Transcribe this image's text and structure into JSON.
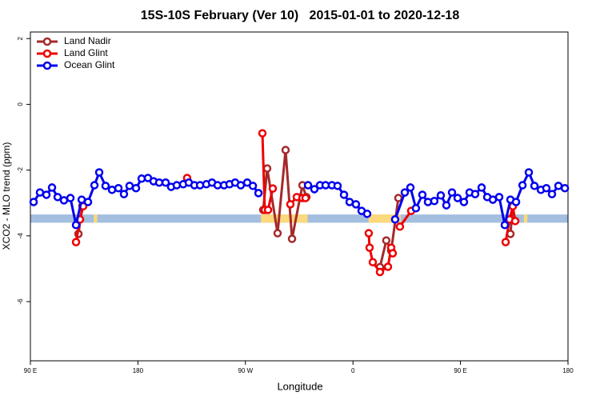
{
  "chart_data": {
    "type": "line",
    "title": "15S-10S February (Ver 10)   2015-01-01 to 2020-12-18",
    "x_label": "Longitude",
    "y_label": "XCO2 - MLO trend (ppm)",
    "xlim": [
      90,
      540
    ],
    "ylim": [
      -7.8,
      2.2
    ],
    "xticks": [
      {
        "value": 90,
        "label": "90 E"
      },
      180,
      {
        "value": 270,
        "label": "90 W"
      },
      {
        "value": 360,
        "label": "0"
      },
      {
        "value": 450,
        "label": "90 E"
      },
      {
        "value": 540,
        "label": "180"
      }
    ],
    "yticks": [
      2,
      0,
      -2,
      -4,
      -6
    ],
    "legend": "top-left",
    "band": {
      "ylim": [
        -3.35,
        -3.6
      ],
      "ocean_color": "#a3bedf",
      "land_color": "#fcd97a",
      "land": [
        [
          143,
          146
        ],
        [
          283,
          322
        ],
        [
          373,
          400
        ],
        [
          503,
          506
        ]
      ]
    },
    "series": [
      {
        "name": "Land Nadir",
        "color": "#a52a2a",
        "x": [
          130.2,
          133.5,
          null,
          284.9,
          288.2,
          296.9,
          303.6,
          309,
          317.7,
          321,
          null,
          382.6,
          387.9,
          392,
          398,
          null,
          491.8,
          493.8
        ],
        "values": [
          -3.94,
          -3.09,
          null,
          -3.21,
          -1.95,
          -3.92,
          -1.39,
          -4.09,
          -2.46,
          -2.82,
          null,
          -4.95,
          -4.14,
          -4.45,
          -2.85,
          null,
          -3.94,
          -3.09
        ]
      },
      {
        "name": "Land Glint",
        "color": "#ee0000",
        "x": [
          128.2,
          131.5,
          134.2,
          null,
          221.2,
          null,
          284.2,
          286.2,
          288.9,
          292.9,
          null,
          307.6,
          313,
          317.7,
          320.3,
          null,
          373.2,
          373.9,
          376.6,
          382.6,
          389.3,
          392,
          393.3,
          null,
          399.3,
          408.7,
          null,
          487.8,
          491.1,
          493.8,
          495.8
        ],
        "values": [
          -4.19,
          -3.5,
          -3.1,
          null,
          -2.24,
          null,
          -0.88,
          -3.21,
          -3.21,
          -2.56,
          null,
          -3.04,
          -2.82,
          -2.85,
          -2.85,
          null,
          -3.92,
          -4.36,
          -4.8,
          -5.1,
          -4.94,
          -4.36,
          -4.53,
          null,
          -3.72,
          -3.24,
          null,
          -4.19,
          -3.5,
          -3.1,
          -3.55
        ]
      },
      {
        "name": "Ocean Glint",
        "color": "#0000ee",
        "x": [
          92.7,
          98,
          103.4,
          108.1,
          112.8,
          118.1,
          123.5,
          128.2,
          132.9,
          138.2,
          143.6,
          147.6,
          152.9,
          158.3,
          163.7,
          168.3,
          173,
          178.4,
          183.1,
          188.4,
          193.1,
          197.8,
          203.2,
          207.8,
          212.5,
          217.9,
          222.6,
          227.3,
          232,
          237.3,
          242,
          246.7,
          252.1,
          256.7,
          261.4,
          266.1,
          271.5,
          276.2,
          280.9,
          null,
          322.4,
          327.7,
          332.4,
          337.1,
          342.4,
          347.1,
          352.5,
          357.2,
          362.5,
          367.2,
          371.9,
          null,
          395.3,
          403.4,
          408.1,
          412.7,
          418.1,
          422.8,
          428.1,
          433.5,
          438.2,
          442.9,
          447.6,
          452.9,
          457.6,
          462.3,
          467.7,
          472.4,
          477.1,
          482.4,
          487.1,
          491.8,
          496.5,
          501.9,
          507.2,
          511.9,
          517.3,
          521.9,
          526.6,
          532,
          537.4
        ],
        "values": [
          -2.97,
          -2.68,
          -2.75,
          -2.53,
          -2.82,
          -2.92,
          -2.85,
          -3.67,
          -2.9,
          -2.97,
          -2.46,
          -2.07,
          -2.48,
          -2.6,
          -2.55,
          -2.73,
          -2.48,
          -2.55,
          -2.26,
          -2.24,
          -2.34,
          -2.38,
          -2.38,
          -2.51,
          -2.46,
          -2.43,
          -2.38,
          -2.46,
          -2.46,
          -2.43,
          -2.38,
          -2.46,
          -2.46,
          -2.43,
          -2.38,
          -2.46,
          -2.38,
          -2.48,
          -2.7,
          null,
          -2.46,
          -2.58,
          -2.46,
          -2.46,
          -2.46,
          -2.48,
          -2.75,
          -2.97,
          -3.04,
          -3.24,
          -3.33,
          null,
          -3.5,
          -2.68,
          -2.53,
          -3.16,
          -2.75,
          -2.97,
          -2.94,
          -2.77,
          -3.07,
          -2.68,
          -2.85,
          -2.97,
          -2.68,
          -2.73,
          -2.53,
          -2.82,
          -2.9,
          -2.82,
          -3.67,
          -2.9,
          -2.97,
          -2.46,
          -2.07,
          -2.48,
          -2.6,
          -2.55,
          -2.73,
          -2.48,
          -2.55
        ]
      }
    ]
  }
}
